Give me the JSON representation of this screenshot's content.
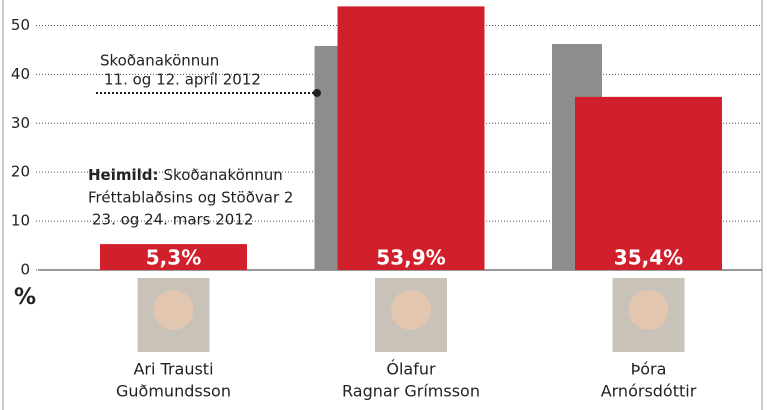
{
  "chart_data": {
    "type": "bar",
    "categories": [
      [
        "Ari Trausti",
        "Guðmundsson"
      ],
      [
        "Ólafur",
        "Ragnar Grímsson"
      ],
      [
        "Þóra",
        "Arnórsdóttir"
      ]
    ],
    "series": [
      {
        "color": "#8d8d8f",
        "values": [
          null,
          45.8,
          46.2
        ]
      },
      {
        "color": "#d1202b",
        "values": [
          5.3,
          53.9,
          35.4
        ],
        "value_labels": [
          "5,3%",
          "53,9%",
          "35,4%"
        ]
      }
    ],
    "ylim": [
      0,
      55
    ],
    "yticks": [
      0,
      10,
      20,
      30,
      40,
      50
    ],
    "grid": true,
    "unit_label": "%",
    "annotations": [
      {
        "lines": [
          "Skoðanakönnun",
          "11. og 12. apríl 2012"
        ]
      },
      {
        "bold": "Heimild:",
        "lines": [
          "Skoðanakönnun",
          "Fréttablaðsins og Stöðvar 2",
          "23. og 24. mars 2012"
        ]
      }
    ]
  }
}
